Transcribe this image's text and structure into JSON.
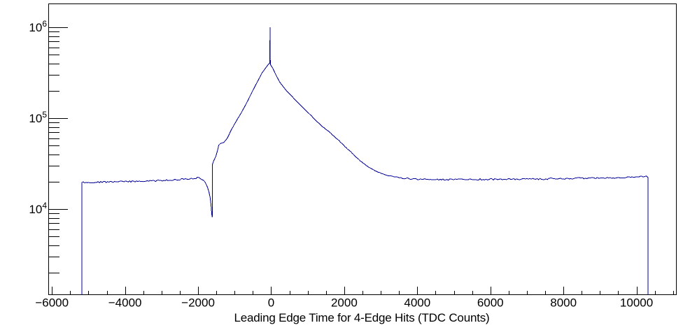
{
  "figure": {
    "background": "#ffffff",
    "frame_color": "#000000",
    "text_color": "#000000"
  },
  "chart_data": {
    "type": "line",
    "title": "",
    "xlabel": "Leading Edge Time for 4-Edge Hits (TDC Counts)",
    "ylabel": "",
    "grid": false,
    "legend": null,
    "x_axis": {
      "min": -6100,
      "max": 11100,
      "major_tick_step": 2000,
      "minor_tick_step": 500,
      "major_tick_values": [
        -6000,
        -4000,
        -2000,
        0,
        2000,
        4000,
        6000,
        8000,
        10000
      ],
      "major_tick_labels": [
        "−6000",
        "−4000",
        "−2000",
        "0",
        "2000",
        "4000",
        "6000",
        "8000",
        "10000"
      ]
    },
    "y_axis": {
      "scale": "log",
      "min": 1130,
      "max": 1830000,
      "major_tick_values": [
        10000,
        100000,
        1000000
      ],
      "major_tick_labels": [
        {
          "mantissa": "10",
          "exponent": "4"
        },
        {
          "mantissa": "10",
          "exponent": "5"
        },
        {
          "mantissa": "10",
          "exponent": "6"
        }
      ],
      "minor_ticks_per_decade": [
        2,
        3,
        4,
        5,
        6,
        7,
        8,
        9
      ]
    },
    "series": [
      {
        "name": "leading-edge-time-histogram",
        "color": "#000099",
        "line_width": 1,
        "points": [
          [
            -5180,
            1130
          ],
          [
            -5180,
            19600
          ],
          [
            -5000,
            19700
          ],
          [
            -4700,
            19800
          ],
          [
            -4400,
            19900
          ],
          [
            -4100,
            20000
          ],
          [
            -3800,
            20100
          ],
          [
            -3500,
            20200
          ],
          [
            -3200,
            20400
          ],
          [
            -2900,
            20700
          ],
          [
            -2600,
            21000
          ],
          [
            -2350,
            21400
          ],
          [
            -2150,
            21800
          ],
          [
            -2020,
            22000
          ],
          [
            -1930,
            21700
          ],
          [
            -1850,
            20700
          ],
          [
            -1790,
            19200
          ],
          [
            -1740,
            17300
          ],
          [
            -1700,
            15300
          ],
          [
            -1668,
            13200
          ],
          [
            -1645,
            11000
          ],
          [
            -1628,
            9000
          ],
          [
            -1618,
            8200
          ],
          [
            -1612,
            8200
          ],
          [
            -1610,
            30500
          ],
          [
            -1585,
            33000
          ],
          [
            -1550,
            35500
          ],
          [
            -1515,
            38000
          ],
          [
            -1490,
            41000
          ],
          [
            -1460,
            45500
          ],
          [
            -1435,
            50500
          ],
          [
            -1390,
            52500
          ],
          [
            -1300,
            54000
          ],
          [
            -1200,
            60000
          ],
          [
            -1110,
            72000
          ],
          [
            -1010,
            85000
          ],
          [
            -920,
            98000
          ],
          [
            -820,
            114000
          ],
          [
            -730,
            133000
          ],
          [
            -630,
            158000
          ],
          [
            -540,
            188000
          ],
          [
            -440,
            225000
          ],
          [
            -340,
            268000
          ],
          [
            -250,
            315000
          ],
          [
            -160,
            352000
          ],
          [
            -90,
            385000
          ],
          [
            -55,
            398000
          ],
          [
            -38,
            400000
          ],
          [
            -30,
            1000000
          ],
          [
            -22,
            390000
          ],
          [
            0,
            378000
          ],
          [
            40,
            357000
          ],
          [
            130,
            300000
          ],
          [
            230,
            252000
          ],
          [
            330,
            222000
          ],
          [
            420,
            201000
          ],
          [
            520,
            182000
          ],
          [
            610,
            167000
          ],
          [
            710,
            152000
          ],
          [
            805,
            139000
          ],
          [
            900,
            127000
          ],
          [
            1000,
            116000
          ],
          [
            1100,
            106000
          ],
          [
            1190,
            97000
          ],
          [
            1290,
            89000
          ],
          [
            1380,
            82000
          ],
          [
            1480,
            76500
          ],
          [
            1570,
            71500
          ],
          [
            1670,
            66000
          ],
          [
            1760,
            61000
          ],
          [
            1860,
            56500
          ],
          [
            1950,
            52000
          ],
          [
            2050,
            47500
          ],
          [
            2150,
            43500
          ],
          [
            2250,
            40000
          ],
          [
            2340,
            36800
          ],
          [
            2440,
            34000
          ],
          [
            2530,
            31800
          ],
          [
            2630,
            29800
          ],
          [
            2720,
            28200
          ],
          [
            2810,
            26800
          ],
          [
            2910,
            25700
          ],
          [
            3010,
            24800
          ],
          [
            3100,
            24000
          ],
          [
            3200,
            23400
          ],
          [
            3300,
            22900
          ],
          [
            3400,
            22500
          ],
          [
            3490,
            22200
          ],
          [
            3590,
            21900
          ],
          [
            3680,
            21700
          ],
          [
            3780,
            21500
          ],
          [
            3870,
            21400
          ],
          [
            4000,
            21300
          ],
          [
            4200,
            21200
          ],
          [
            4400,
            21150
          ],
          [
            4700,
            21100
          ],
          [
            5000,
            21100
          ],
          [
            5400,
            21150
          ],
          [
            5800,
            21200
          ],
          [
            6200,
            21250
          ],
          [
            6600,
            21300
          ],
          [
            7000,
            21350
          ],
          [
            7400,
            21450
          ],
          [
            7800,
            21550
          ],
          [
            8200,
            21700
          ],
          [
            8600,
            21850
          ],
          [
            9000,
            22000
          ],
          [
            9400,
            22200
          ],
          [
            9800,
            22400
          ],
          [
            10100,
            22600
          ],
          [
            10310,
            22700
          ],
          [
            10310,
            1130
          ]
        ]
      }
    ]
  }
}
